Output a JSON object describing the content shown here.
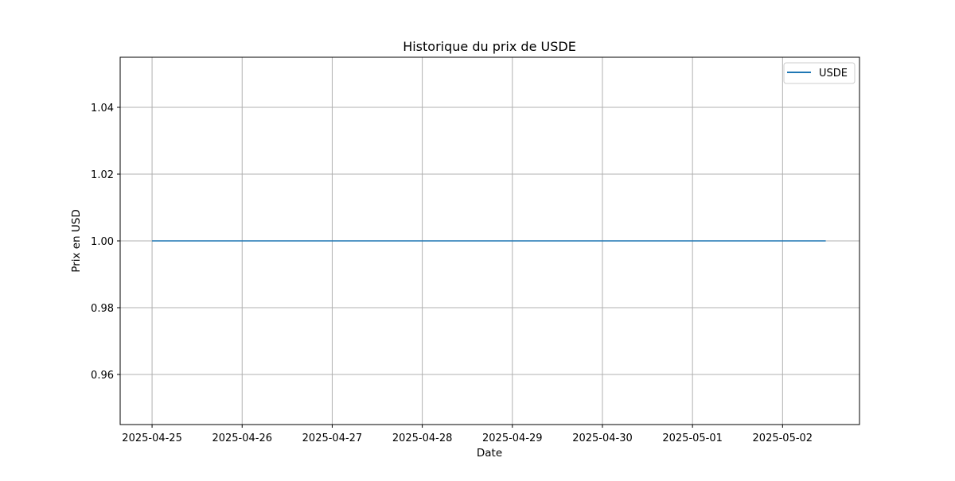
{
  "chart_data": {
    "type": "line",
    "title": "Historique du prix de USDE",
    "xlabel": "Date",
    "ylabel": "Prix en USD",
    "x_tick_labels": [
      "2025-04-25",
      "2025-04-26",
      "2025-04-27",
      "2025-04-28",
      "2025-04-29",
      "2025-04-30",
      "2025-05-01",
      "2025-05-02"
    ],
    "y_tick_labels": [
      "0.96",
      "0.98",
      "1.00",
      "1.02",
      "1.04"
    ],
    "x_range": [
      "2025-04-24T15:30",
      "2025-05-02T20:30"
    ],
    "ylim": [
      0.945,
      1.055
    ],
    "grid": true,
    "legend_position": "top-right",
    "series": [
      {
        "name": "USDE",
        "color": "#1f77b4",
        "points": [
          {
            "x": "2025-04-25T00:00",
            "y": 1.0
          },
          {
            "x": "2025-04-26T00:00",
            "y": 1.0
          },
          {
            "x": "2025-04-27T00:00",
            "y": 1.0
          },
          {
            "x": "2025-04-28T00:00",
            "y": 1.0
          },
          {
            "x": "2025-04-29T00:00",
            "y": 1.0
          },
          {
            "x": "2025-04-30T00:00",
            "y": 1.0
          },
          {
            "x": "2025-05-01T00:00",
            "y": 1.0
          },
          {
            "x": "2025-05-02T00:00",
            "y": 1.0
          },
          {
            "x": "2025-05-02T11:30",
            "y": 1.0
          }
        ]
      }
    ]
  }
}
